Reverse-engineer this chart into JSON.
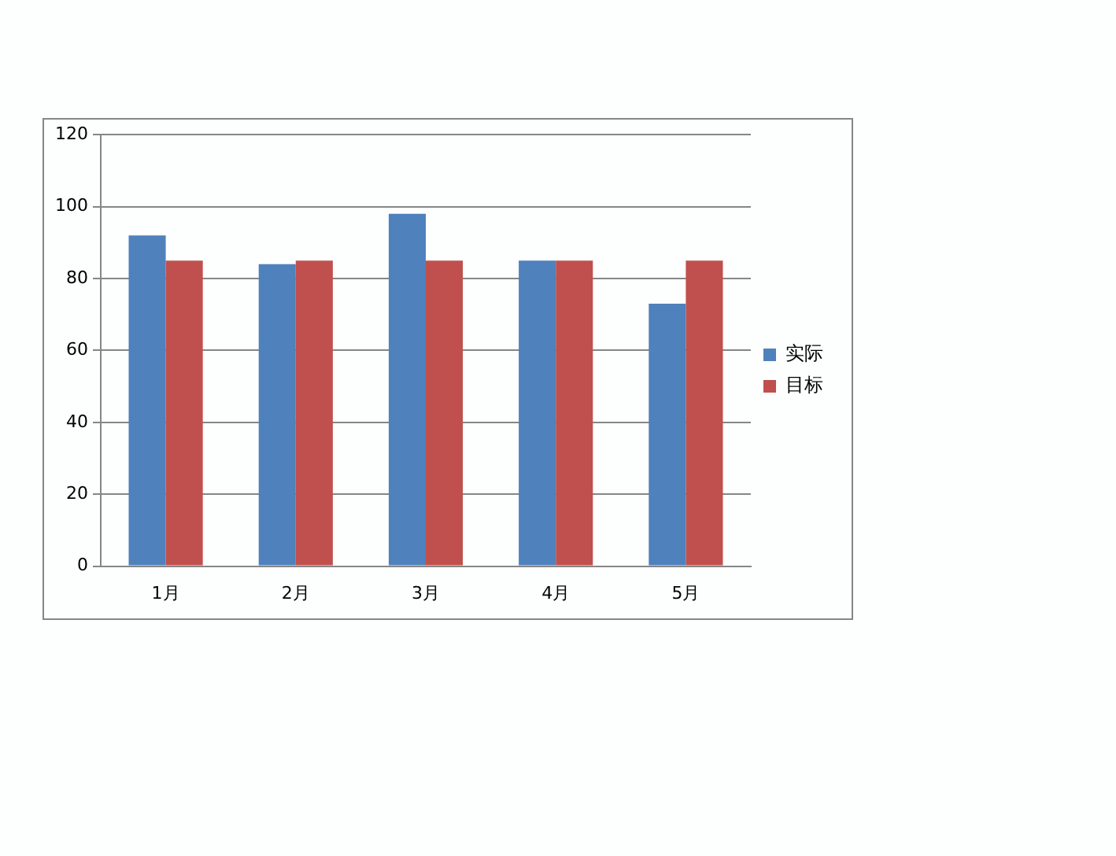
{
  "chart_data": {
    "type": "bar",
    "categories": [
      "1月",
      "2月",
      "3月",
      "4月",
      "5月"
    ],
    "series": [
      {
        "name": "实际",
        "color": "#4f81bd",
        "values": [
          92,
          84,
          98,
          85,
          73
        ]
      },
      {
        "name": "目标",
        "color": "#c0504d",
        "values": [
          85,
          85,
          85,
          85,
          85
        ]
      }
    ],
    "ylim": [
      0,
      120
    ],
    "yticks": [
      0,
      20,
      40,
      60,
      80,
      100,
      120
    ],
    "grid": "y",
    "legend": "right"
  }
}
